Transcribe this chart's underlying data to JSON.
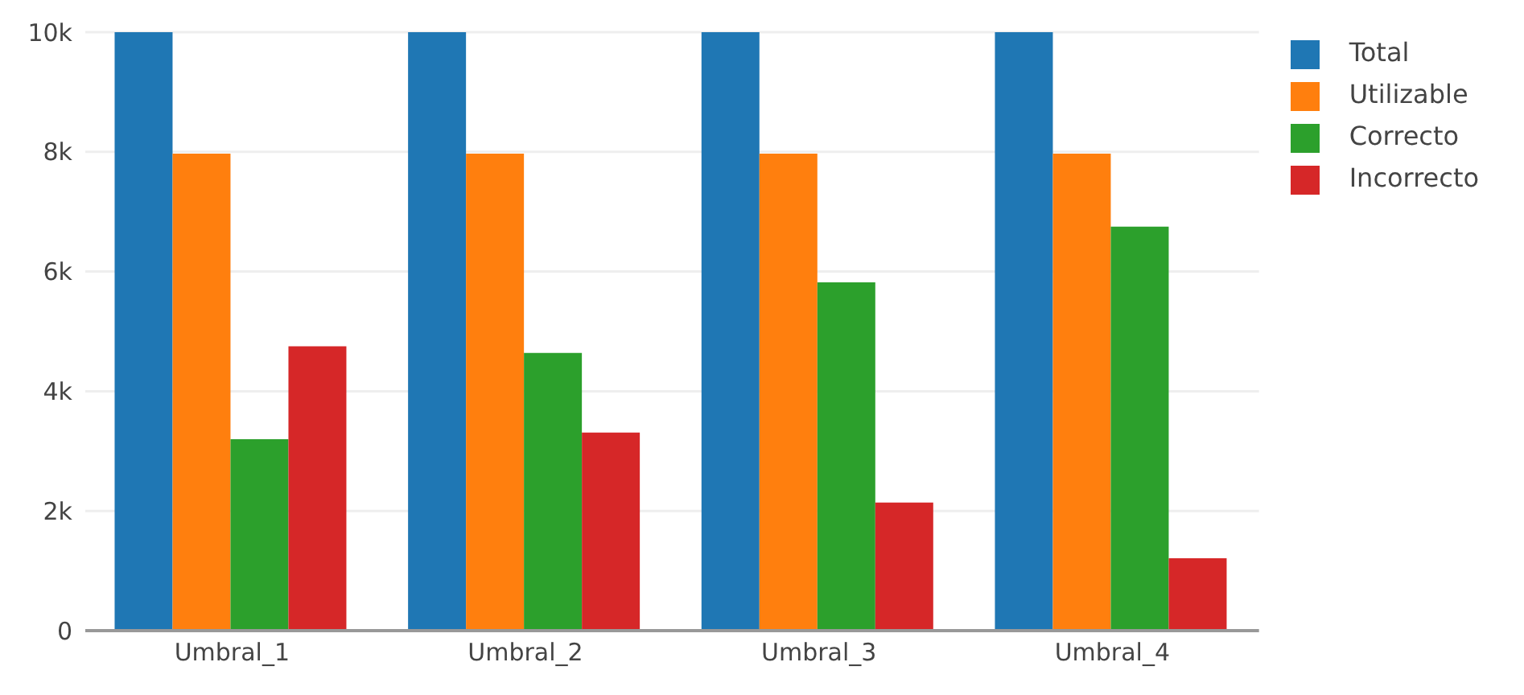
{
  "chart_data": {
    "type": "bar",
    "categories": [
      "Umbral_1",
      "Umbral_2",
      "Umbral_3",
      "Umbral_4"
    ],
    "series": [
      {
        "name": "Total",
        "color": "#1f77b4",
        "values": [
          10000,
          10000,
          10000,
          10000
        ]
      },
      {
        "name": "Utilizable",
        "color": "#ff7f0e",
        "values": [
          7970,
          7970,
          7970,
          7970
        ]
      },
      {
        "name": "Correcto",
        "color": "#2ca02c",
        "values": [
          3200,
          4640,
          5820,
          6750
        ]
      },
      {
        "name": "Incorrecto",
        "color": "#d62728",
        "values": [
          4750,
          3310,
          2140,
          1210
        ]
      }
    ],
    "ylim": [
      0,
      10000
    ],
    "yticks": [
      {
        "value": 0,
        "label": "0"
      },
      {
        "value": 2000,
        "label": "2k"
      },
      {
        "value": 4000,
        "label": "4k"
      },
      {
        "value": 6000,
        "label": "6k"
      },
      {
        "value": 8000,
        "label": "8k"
      },
      {
        "value": 10000,
        "label": "10k"
      }
    ],
    "grid": "y",
    "legend": "top right"
  }
}
